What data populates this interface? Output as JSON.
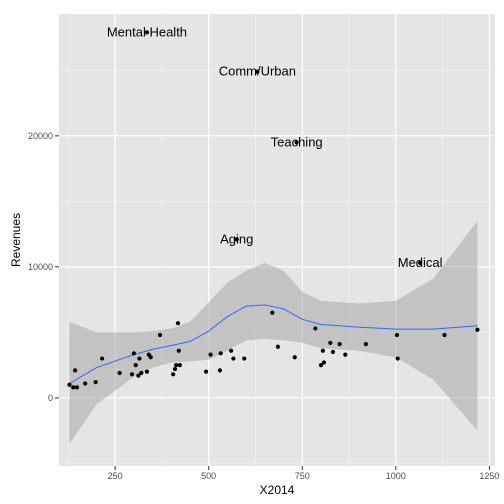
{
  "chart_data": {
    "type": "scatter",
    "title": "",
    "xlabel": "X2014",
    "ylabel": "Revenues",
    "xlim": [
      100,
      1265
    ],
    "ylim": [
      -5200,
      29300
    ],
    "x_ticks": [
      250,
      500,
      750,
      1000,
      1250
    ],
    "y_ticks": [
      0,
      10000,
      20000
    ],
    "x_tick_labels": [
      "250",
      "500",
      "750",
      "1000",
      "1250"
    ],
    "y_tick_labels": [
      "0",
      "10000",
      "20000"
    ],
    "grid": true,
    "legend": "none",
    "colors": {
      "panel": "#e5e5e5",
      "grid_major": "#ffffff",
      "grid_minor": "#f2f2f2",
      "point": "#000000",
      "smooth_line": "#3366ff",
      "ribbon": "#999999"
    },
    "points": [
      {
        "x": 128,
        "y": 1000
      },
      {
        "x": 138,
        "y": 800
      },
      {
        "x": 143,
        "y": 2100
      },
      {
        "x": 148,
        "y": 800
      },
      {
        "x": 170,
        "y": 1100
      },
      {
        "x": 198,
        "y": 1200
      },
      {
        "x": 215,
        "y": 3000
      },
      {
        "x": 262,
        "y": 1900
      },
      {
        "x": 295,
        "y": 1800
      },
      {
        "x": 300,
        "y": 3400
      },
      {
        "x": 305,
        "y": 2500
      },
      {
        "x": 312,
        "y": 1700
      },
      {
        "x": 315,
        "y": 3000
      },
      {
        "x": 320,
        "y": 1900
      },
      {
        "x": 335,
        "y": 2000
      },
      {
        "x": 340,
        "y": 3300
      },
      {
        "x": 345,
        "y": 3100
      },
      {
        "x": 370,
        "y": 4800
      },
      {
        "x": 405,
        "y": 1800
      },
      {
        "x": 410,
        "y": 2200
      },
      {
        "x": 413,
        "y": 2500
      },
      {
        "x": 418,
        "y": 5700
      },
      {
        "x": 420,
        "y": 3600
      },
      {
        "x": 423,
        "y": 2500
      },
      {
        "x": 493,
        "y": 2000
      },
      {
        "x": 505,
        "y": 3300
      },
      {
        "x": 530,
        "y": 2100
      },
      {
        "x": 532,
        "y": 3400
      },
      {
        "x": 560,
        "y": 3600
      },
      {
        "x": 566,
        "y": 3000
      },
      {
        "x": 595,
        "y": 3000
      },
      {
        "x": 670,
        "y": 6500
      },
      {
        "x": 685,
        "y": 3900
      },
      {
        "x": 730,
        "y": 3100
      },
      {
        "x": 785,
        "y": 5300
      },
      {
        "x": 800,
        "y": 2500
      },
      {
        "x": 805,
        "y": 3600
      },
      {
        "x": 808,
        "y": 2700
      },
      {
        "x": 825,
        "y": 4200
      },
      {
        "x": 832,
        "y": 3500
      },
      {
        "x": 850,
        "y": 4100
      },
      {
        "x": 865,
        "y": 3300
      },
      {
        "x": 920,
        "y": 4100
      },
      {
        "x": 1003,
        "y": 4800
      },
      {
        "x": 1005,
        "y": 3000
      },
      {
        "x": 1130,
        "y": 4800
      },
      {
        "x": 1218,
        "y": 5200
      }
    ],
    "labeled_points": [
      {
        "label": "Mental Health",
        "x": 335,
        "y": 27900
      },
      {
        "label": "Comm/Urban",
        "x": 630,
        "y": 24900
      },
      {
        "label": "Teaching",
        "x": 735,
        "y": 19500
      },
      {
        "label": "Aging",
        "x": 575,
        "y": 12100
      },
      {
        "label": "Medical",
        "x": 1065,
        "y": 10300
      }
    ],
    "smooth": {
      "x": [
        128,
        200,
        300,
        350,
        400,
        450,
        500,
        550,
        600,
        650,
        700,
        750,
        800,
        900,
        1000,
        1100,
        1218
      ],
      "y": [
        1100,
        2300,
        3300,
        3700,
        4000,
        4300,
        5100,
        6200,
        7000,
        7100,
        6800,
        6000,
        5600,
        5400,
        5250,
        5250,
        5500
      ],
      "lower": [
        -3500,
        -500,
        1600,
        2300,
        2700,
        2800,
        2900,
        3600,
        4400,
        4500,
        4400,
        4200,
        3800,
        3600,
        3100,
        1400,
        -2500
      ],
      "upper": [
        5800,
        5000,
        5000,
        5100,
        5300,
        5800,
        7300,
        8800,
        9700,
        10300,
        9700,
        8100,
        7400,
        7200,
        7400,
        9100,
        13500
      ]
    }
  }
}
